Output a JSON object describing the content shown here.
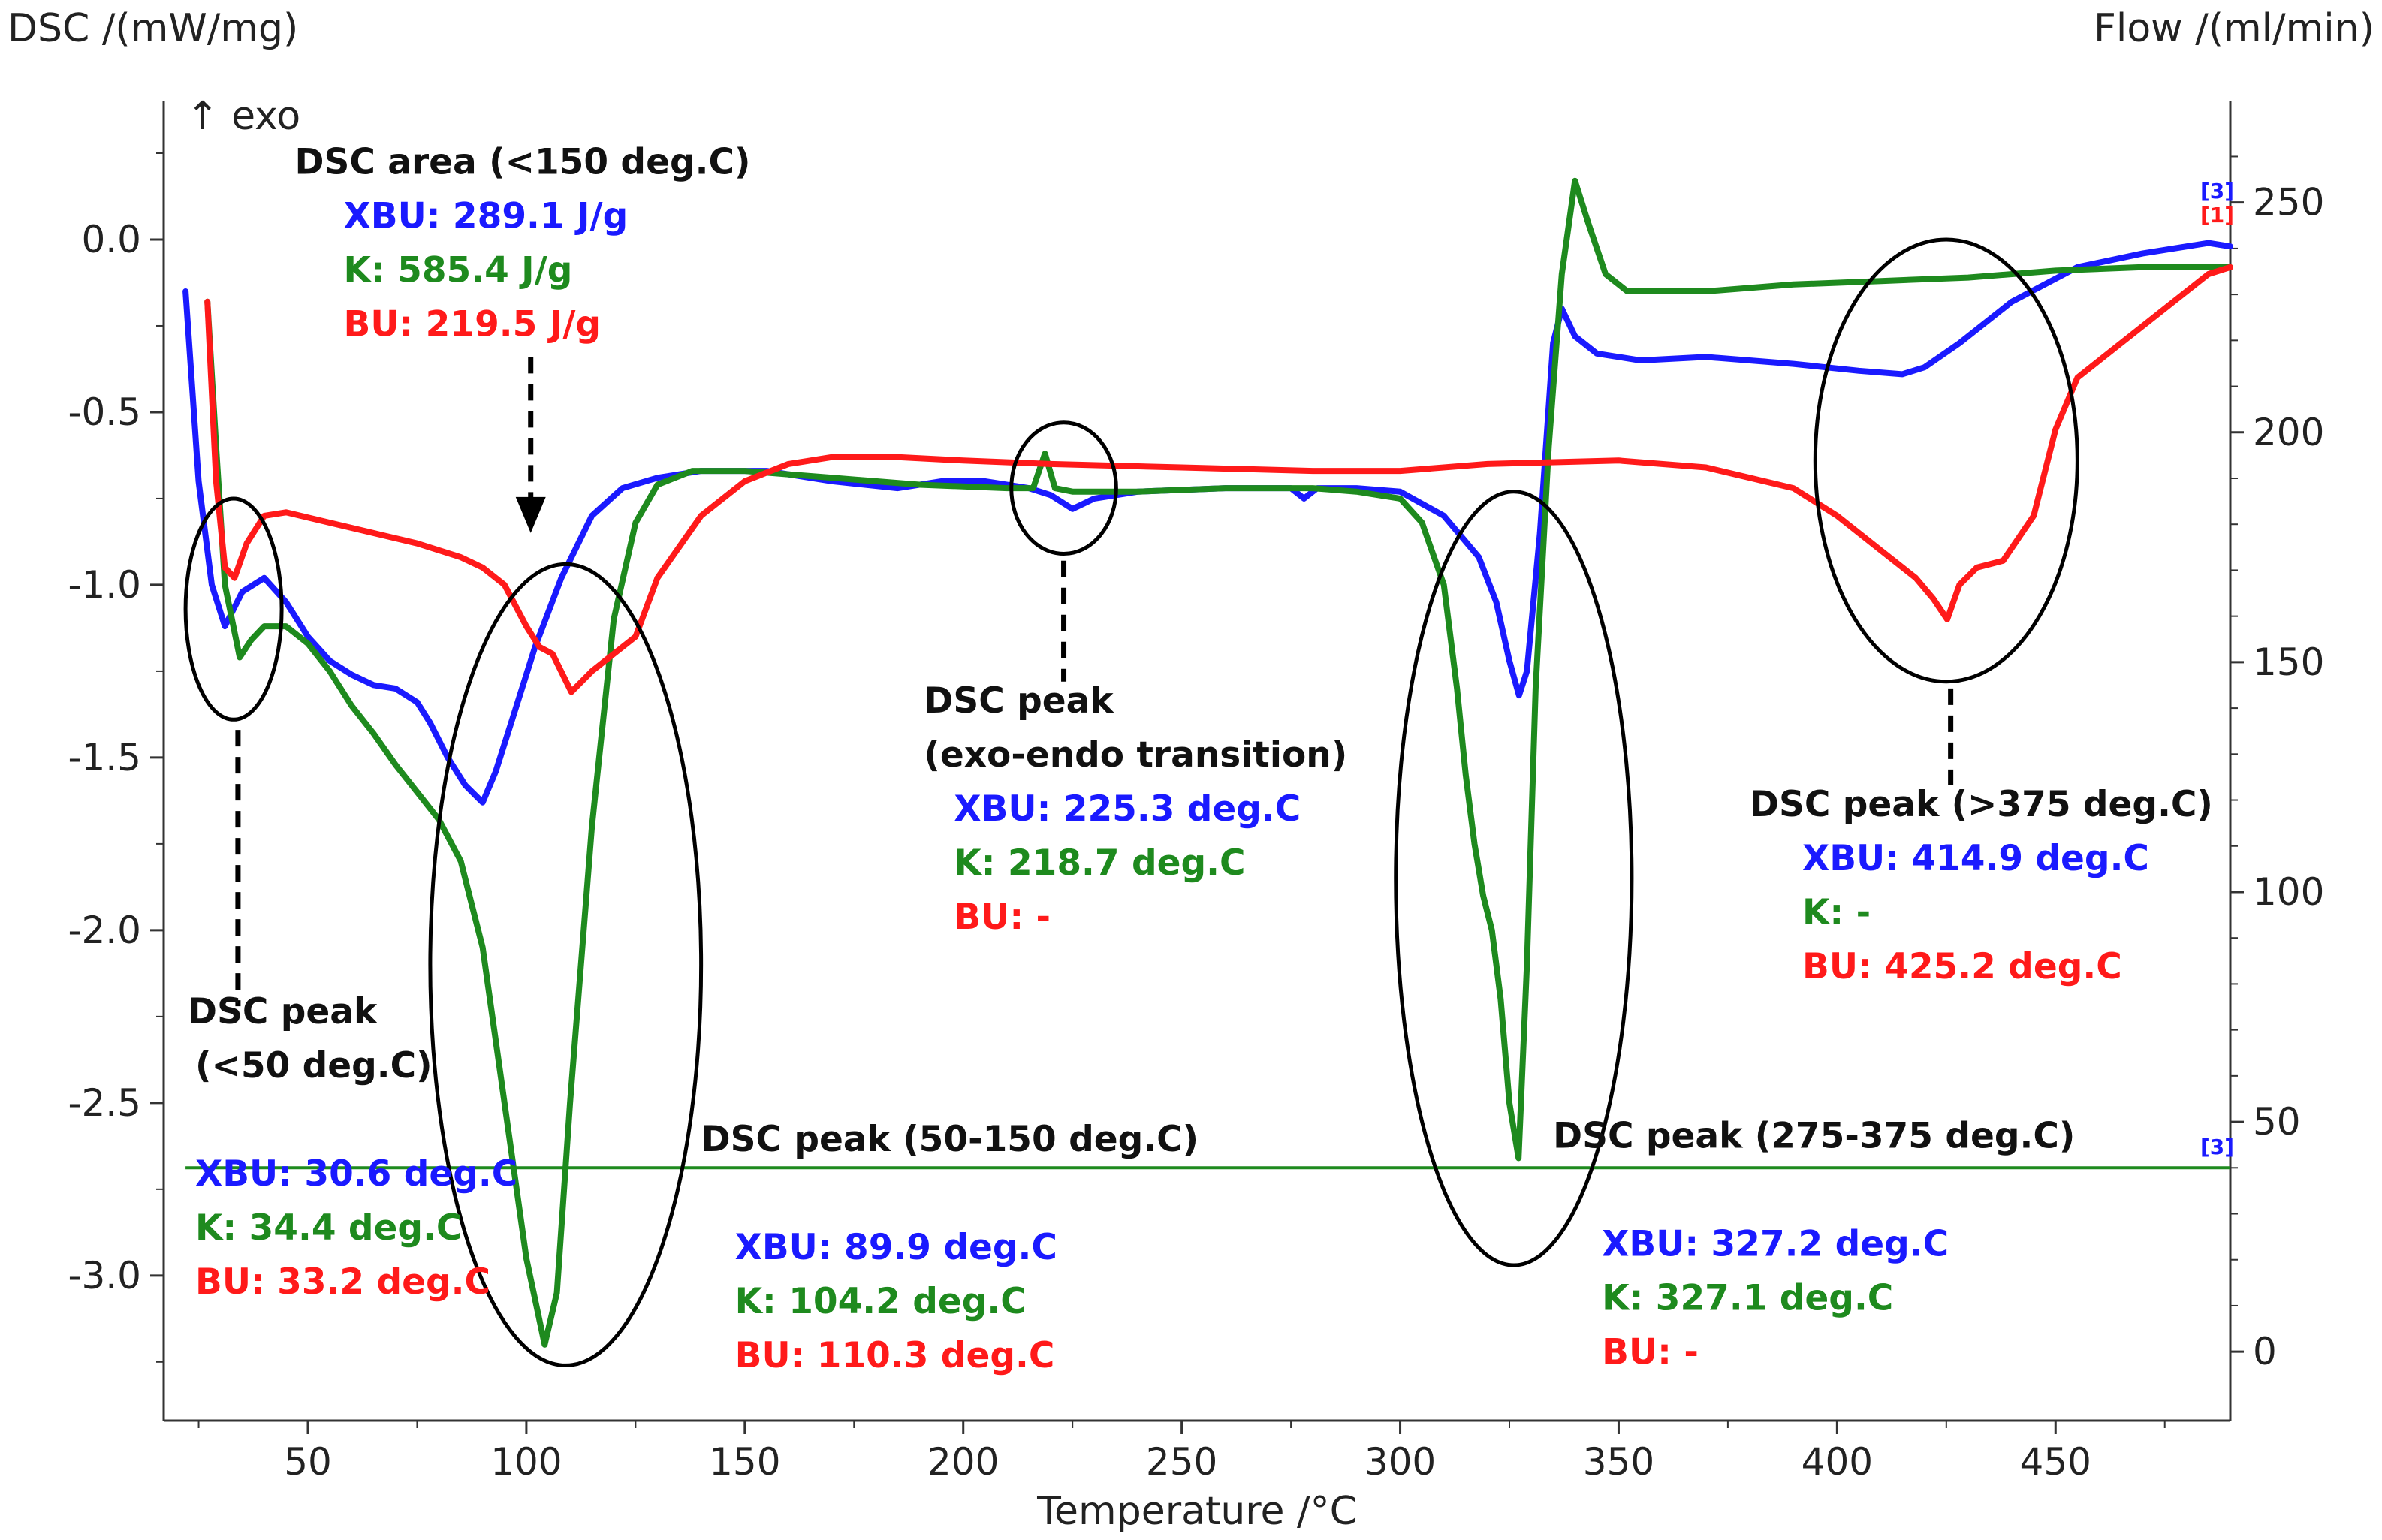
{
  "chart_data": {
    "type": "line",
    "title": "",
    "xlabel": "Temperature /°C",
    "ylabel_left": "DSC /(mW/mg)",
    "ylabel_right": "Flow /(ml/min)",
    "exo_label": "↑ exo",
    "xlim": [
      17,
      490
    ],
    "ylim_left": [
      -3.42,
      0.4
    ],
    "ylim_right": [
      -15,
      272
    ],
    "x_ticks": [
      {
        "v": 50,
        "label": "50"
      },
      {
        "v": 100,
        "label": "100"
      },
      {
        "v": 150,
        "label": "150"
      },
      {
        "v": 200,
        "label": "200"
      },
      {
        "v": 250,
        "label": "250"
      },
      {
        "v": 300,
        "label": "300"
      },
      {
        "v": 350,
        "label": "350"
      },
      {
        "v": 400,
        "label": "400"
      },
      {
        "v": 450,
        "label": "450"
      }
    ],
    "y_ticks_left": [
      {
        "v": 0.0,
        "label": "0.0"
      },
      {
        "v": -0.5,
        "label": "-0.5"
      },
      {
        "v": -1.0,
        "label": "-1.0"
      },
      {
        "v": -1.5,
        "label": "-1.5"
      },
      {
        "v": -2.0,
        "label": "-2.0"
      },
      {
        "v": -2.5,
        "label": "-2.5"
      },
      {
        "v": -3.0,
        "label": "-3.0"
      }
    ],
    "y_ticks_right": [
      {
        "v": 250,
        "label": "250"
      },
      {
        "v": 200,
        "label": "200"
      },
      {
        "v": 150,
        "label": "150"
      },
      {
        "v": 100,
        "label": "100"
      },
      {
        "v": 50,
        "label": "50"
      },
      {
        "v": 0,
        "label": "0"
      }
    ],
    "colors": {
      "XBU": "#1a1aff",
      "K": "#1e8a1e",
      "BU": "#ff1a1a",
      "axis": "#333333",
      "annotation": "#111111"
    },
    "series": [
      {
        "name": "XBU",
        "color": "#1a1aff",
        "x": [
          22,
          25,
          28,
          31,
          35,
          40,
          45,
          50,
          55,
          60,
          65,
          70,
          75,
          78,
          82,
          86,
          90,
          93,
          97,
          102,
          108,
          115,
          122,
          130,
          140,
          155,
          170,
          185,
          195,
          205,
          215,
          220,
          225,
          230,
          240,
          260,
          275,
          278,
          281,
          290,
          300,
          310,
          318,
          322,
          325,
          327.2,
          329,
          332,
          335,
          337,
          340,
          345,
          355,
          370,
          390,
          405,
          414.9,
          420,
          428,
          440,
          455,
          470,
          485,
          490
        ],
        "y": [
          -0.15,
          -0.7,
          -1.0,
          -1.12,
          -1.02,
          -0.98,
          -1.05,
          -1.15,
          -1.22,
          -1.26,
          -1.29,
          -1.3,
          -1.34,
          -1.4,
          -1.5,
          -1.58,
          -1.63,
          -1.54,
          -1.38,
          -1.18,
          -0.98,
          -0.8,
          -0.72,
          -0.69,
          -0.67,
          -0.67,
          -0.7,
          -0.72,
          -0.7,
          -0.7,
          -0.72,
          -0.74,
          -0.78,
          -0.75,
          -0.73,
          -0.72,
          -0.72,
          -0.75,
          -0.72,
          -0.72,
          -0.73,
          -0.8,
          -0.92,
          -1.05,
          -1.22,
          -1.32,
          -1.25,
          -0.85,
          -0.3,
          -0.2,
          -0.28,
          -0.33,
          -0.35,
          -0.34,
          -0.36,
          -0.38,
          -0.39,
          -0.37,
          -0.3,
          -0.18,
          -0.08,
          -0.04,
          -0.01,
          -0.02
        ]
      },
      {
        "name": "K",
        "color": "#1e8a1e",
        "x": [
          27,
          29,
          31,
          34.4,
          37,
          40,
          45,
          50,
          55,
          60,
          65,
          70,
          75,
          80,
          85,
          90,
          95,
          100,
          104.2,
          107,
          110,
          115,
          120,
          125,
          130,
          138,
          150,
          170,
          190,
          210,
          216,
          218.7,
          221,
          225,
          240,
          260,
          280,
          290,
          300,
          305,
          310,
          313,
          315,
          317,
          319,
          321,
          323,
          325,
          327.1,
          329,
          331,
          334,
          337,
          340,
          343,
          347,
          352,
          370,
          390,
          410,
          430,
          450,
          470,
          490
        ],
        "y": [
          -0.18,
          -0.6,
          -1.0,
          -1.21,
          -1.16,
          -1.12,
          -1.12,
          -1.17,
          -1.25,
          -1.35,
          -1.43,
          -1.52,
          -1.6,
          -1.68,
          -1.8,
          -2.05,
          -2.5,
          -2.95,
          -3.2,
          -3.05,
          -2.5,
          -1.7,
          -1.1,
          -0.82,
          -0.71,
          -0.67,
          -0.67,
          -0.69,
          -0.71,
          -0.72,
          -0.72,
          -0.62,
          -0.72,
          -0.73,
          -0.73,
          -0.72,
          -0.72,
          -0.73,
          -0.75,
          -0.82,
          -1.0,
          -1.3,
          -1.55,
          -1.75,
          -1.9,
          -2.0,
          -2.2,
          -2.5,
          -2.66,
          -2.1,
          -1.3,
          -0.6,
          -0.1,
          0.17,
          0.05,
          -0.1,
          -0.15,
          -0.15,
          -0.13,
          -0.12,
          -0.11,
          -0.09,
          -0.08,
          -0.08
        ]
      },
      {
        "name": "BU",
        "color": "#ff1a1a",
        "x": [
          27,
          29,
          31,
          33.2,
          36,
          40,
          45,
          55,
          65,
          75,
          85,
          90,
          95,
          100,
          103,
          106,
          110.3,
          115,
          120,
          125,
          130,
          140,
          150,
          160,
          170,
          185,
          200,
          220,
          250,
          280,
          300,
          320,
          350,
          370,
          390,
          400,
          410,
          418,
          422,
          425.2,
          428,
          432,
          438,
          445,
          450,
          455,
          465,
          475,
          485,
          490
        ],
        "y": [
          -0.18,
          -0.7,
          -0.95,
          -0.98,
          -0.88,
          -0.8,
          -0.79,
          -0.82,
          -0.85,
          -0.88,
          -0.92,
          -0.95,
          -1.0,
          -1.12,
          -1.18,
          -1.2,
          -1.31,
          -1.25,
          -1.2,
          -1.15,
          -0.98,
          -0.8,
          -0.7,
          -0.65,
          -0.63,
          -0.63,
          -0.64,
          -0.65,
          -0.66,
          -0.67,
          -0.67,
          -0.65,
          -0.64,
          -0.66,
          -0.72,
          -0.8,
          -0.9,
          -0.98,
          -1.04,
          -1.1,
          -1.0,
          -0.95,
          -0.93,
          -0.8,
          -0.55,
          -0.4,
          -0.3,
          -0.2,
          -0.1,
          -0.08
        ]
      }
    ],
    "flow_series": {
      "name": "Flow",
      "color": "#1e8a1e",
      "axis": "right",
      "x": [
        22,
        490
      ],
      "y": [
        40,
        40
      ]
    },
    "curve_tags": [
      {
        "text": "[3]",
        "color": "#1a1aff",
        "x": 487,
        "y": 0.12
      },
      {
        "text": "[1]",
        "color": "#ff1a1a",
        "x": 487,
        "y": 0.05
      },
      {
        "text": "[3]",
        "color": "#1a1aff",
        "x": 487,
        "y_right": 43
      }
    ],
    "ellipses": [
      {
        "name": "peak-below-50",
        "cx": 33,
        "cy": -1.07,
        "rx": 11,
        "ry": 0.32
      },
      {
        "name": "peak-50-150",
        "cx": 109,
        "cy": -2.1,
        "rx": 31,
        "ry": 1.16
      },
      {
        "name": "peak-exo-endo",
        "cx": 223,
        "cy": -0.72,
        "rx": 12,
        "ry": 0.19
      },
      {
        "name": "peak-275-375",
        "cx": 326,
        "cy": -1.85,
        "rx": 27,
        "ry": 1.12
      },
      {
        "name": "peak-above-375",
        "cx": 425,
        "cy": -0.64,
        "rx": 30,
        "ry": 0.64
      }
    ],
    "arrows": [
      {
        "name": "arrow-area",
        "x": 101,
        "y1": -0.34,
        "y2": -0.85,
        "head": true
      },
      {
        "name": "arrow-below-50",
        "x": 34,
        "y1": -1.42,
        "y2": -2.22,
        "head": false
      },
      {
        "name": "arrow-exo-endo",
        "x": 223,
        "y1": -0.93,
        "y2": -1.28,
        "head": false
      },
      {
        "name": "arrow-above-375",
        "x": 426,
        "y1": -1.3,
        "y2": -1.58,
        "head": false
      }
    ],
    "annotations": [
      {
        "name": "area",
        "x": 47,
        "y": 0.19,
        "lines": [
          {
            "text": "DSC area (<150 deg.C)",
            "color": "#111111"
          },
          {
            "text": "XBU: 289.1 J/g",
            "color": "#1a1aff",
            "indent": 65
          },
          {
            "text": "K: 585.4 J/g",
            "color": "#1e8a1e",
            "indent": 65
          },
          {
            "text": "BU: 219.5 J/g",
            "color": "#ff1a1a",
            "indent": 65
          }
        ]
      },
      {
        "name": "peak-below-50",
        "x": 22.5,
        "y": -2.27,
        "lines": [
          {
            "text": "DSC peak",
            "color": "#111111"
          },
          {
            "text": "(<50 deg.C)",
            "color": "#111111",
            "indent": 10
          },
          {
            "text": "",
            "color": "#111111"
          },
          {
            "text": "XBU: 30.6 deg.C",
            "color": "#1a1aff",
            "indent": 10
          },
          {
            "text": "K: 34.4 deg.C",
            "color": "#1e8a1e",
            "indent": 10
          },
          {
            "text": "BU: 33.2 deg.C",
            "color": "#ff1a1a",
            "indent": 10
          }
        ]
      },
      {
        "name": "peak-50-150",
        "x": 140,
        "y": -2.64,
        "lines": [
          {
            "text": "DSC peak (50-150 deg.C)",
            "color": "#111111"
          },
          {
            "text": "",
            "color": "#111111"
          },
          {
            "text": "XBU: 89.9 deg.C",
            "color": "#1a1aff",
            "indent": 45
          },
          {
            "text": "K: 104.2 deg.C",
            "color": "#1e8a1e",
            "indent": 45
          },
          {
            "text": "BU: 110.3 deg.C",
            "color": "#ff1a1a",
            "indent": 45
          }
        ]
      },
      {
        "name": "peak-exo-endo",
        "x": 191,
        "y": -1.37,
        "lines": [
          {
            "text": "DSC peak",
            "color": "#111111"
          },
          {
            "text": "(exo-endo transition)",
            "color": "#111111"
          },
          {
            "text": "XBU: 225.3 deg.C",
            "color": "#1a1aff",
            "indent": 40
          },
          {
            "text": "K: 218.7 deg.C",
            "color": "#1e8a1e",
            "indent": 40
          },
          {
            "text": "BU: -",
            "color": "#ff1a1a",
            "indent": 40
          }
        ]
      },
      {
        "name": "peak-275-375",
        "x": 335,
        "y": -2.63,
        "lines": [
          {
            "text": "DSC peak (275-375 deg.C)",
            "color": "#111111"
          },
          {
            "text": "",
            "color": "#111111"
          },
          {
            "text": "XBU: 327.2 deg.C",
            "color": "#1a1aff",
            "indent": 65
          },
          {
            "text": "K: 327.1 deg.C",
            "color": "#1e8a1e",
            "indent": 65
          },
          {
            "text": "BU: -",
            "color": "#ff1a1a",
            "indent": 65
          }
        ]
      },
      {
        "name": "peak-above-375",
        "x": 380,
        "y": -1.67,
        "lines": [
          {
            "text": "DSC peak (>375 deg.C)",
            "color": "#111111"
          },
          {
            "text": "XBU: 414.9 deg.C",
            "color": "#1a1aff",
            "indent": 70
          },
          {
            "text": "K: -",
            "color": "#1e8a1e",
            "indent": 70
          },
          {
            "text": "BU: 425.2 deg.C",
            "color": "#ff1a1a",
            "indent": 70
          }
        ]
      }
    ]
  }
}
